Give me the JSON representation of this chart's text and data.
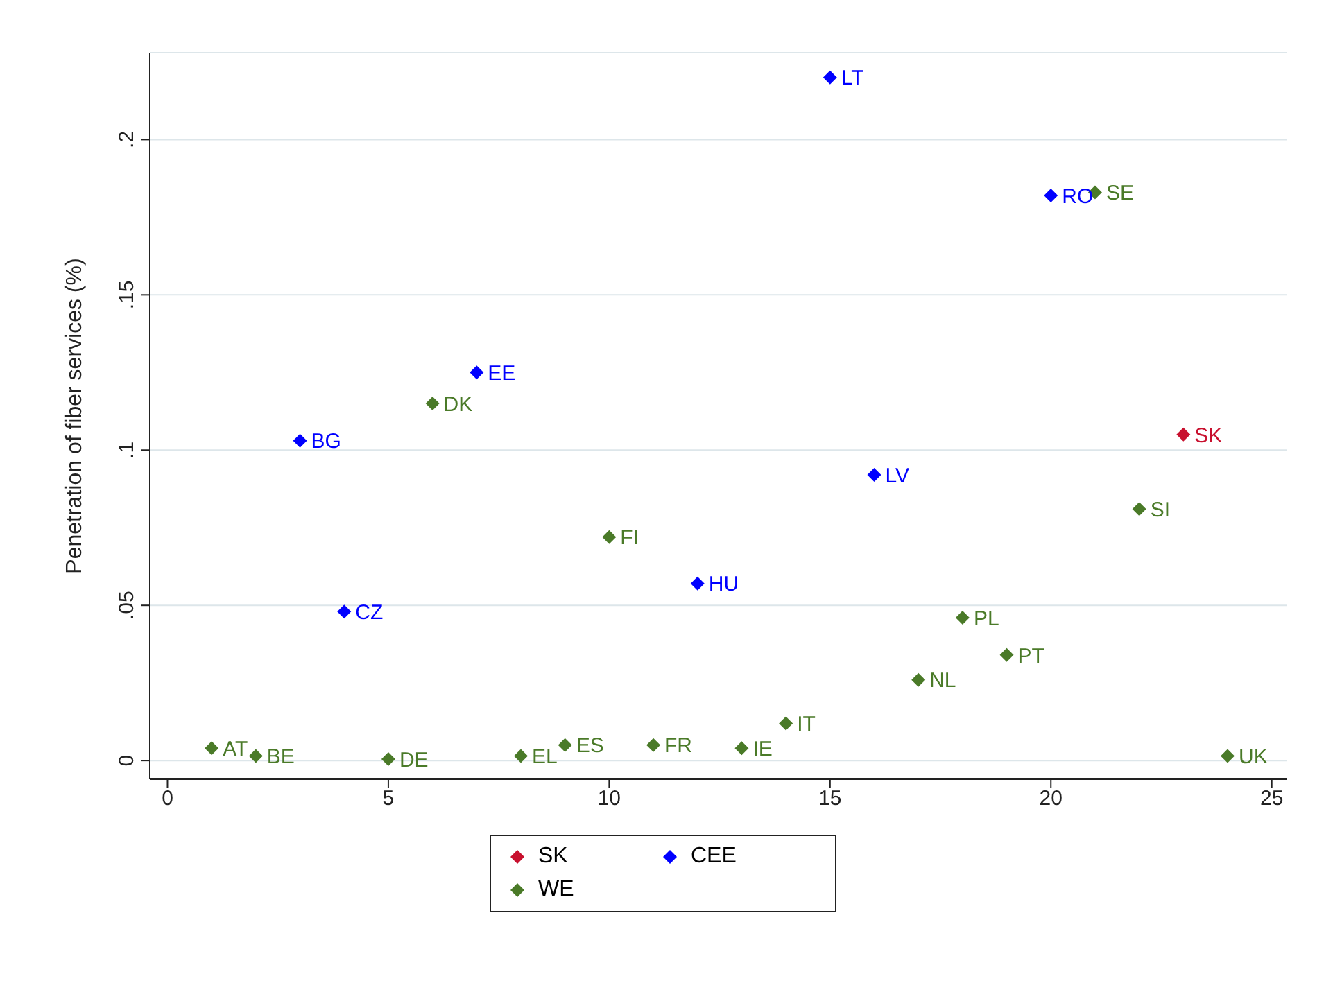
{
  "chart_data": {
    "type": "scatter",
    "ylabel": "Penetration of fiber services (%)",
    "xlim": [
      -0.4,
      25.35
    ],
    "xticks": [
      0,
      5,
      10,
      15,
      20,
      25
    ],
    "ylim": [
      -0.006,
      0.228
    ],
    "yticks": [
      0,
      {
        "value": 0.05,
        "label": ".05"
      },
      {
        "value": 0.1,
        "label": ".1"
      },
      {
        "value": 0.15,
        "label": ".15"
      },
      {
        "value": 0.2,
        "label": ".2"
      }
    ],
    "grid": "y",
    "legend": "bottom",
    "marker": "diamond",
    "series": [
      {
        "name": "SK",
        "color": "#c8102e",
        "x": [
          23
        ],
        "values": [
          0.105
        ]
      },
      {
        "name": "CEE",
        "color": "#0000ff",
        "x": [
          15,
          20,
          7,
          3,
          16,
          12,
          4
        ],
        "values": [
          0.22,
          0.182,
          0.125,
          0.103,
          0.092,
          0.057,
          0.048
        ]
      },
      {
        "name": "WE",
        "color": "#4a7a28",
        "x": [
          1,
          2,
          5,
          8,
          9,
          11,
          13,
          14,
          17,
          19,
          18,
          22,
          24,
          6,
          10,
          21
        ],
        "values": [
          0.004,
          0.0015,
          0.0005,
          0.0015,
          0.005,
          0.005,
          0.004,
          0.012,
          0.026,
          0.034,
          0.046,
          0.081,
          0.0015,
          0.115,
          0.072,
          0.183
        ]
      }
    ],
    "annotations": [
      {
        "text": "SK",
        "x": 23,
        "y": 0.105
      },
      {
        "text": "LT",
        "x": 15,
        "y": 0.22
      },
      {
        "text": "RO",
        "x": 20,
        "y": 0.182
      },
      {
        "text": "EE",
        "x": 7,
        "y": 0.125
      },
      {
        "text": "BG",
        "x": 3,
        "y": 0.103
      },
      {
        "text": "LV",
        "x": 16,
        "y": 0.092
      },
      {
        "text": "HU",
        "x": 12,
        "y": 0.057
      },
      {
        "text": "CZ",
        "x": 4,
        "y": 0.048
      },
      {
        "text": "AT",
        "x": 1,
        "y": 0.004
      },
      {
        "text": "BE",
        "x": 2,
        "y": 0.0015
      },
      {
        "text": "DE",
        "x": 5,
        "y": 0.0005
      },
      {
        "text": "EL",
        "x": 8,
        "y": 0.0015
      },
      {
        "text": "ES",
        "x": 9,
        "y": 0.005
      },
      {
        "text": "FR",
        "x": 11,
        "y": 0.005
      },
      {
        "text": "IE",
        "x": 13,
        "y": 0.004
      },
      {
        "text": "IT",
        "x": 14,
        "y": 0.012
      },
      {
        "text": "NL",
        "x": 17,
        "y": 0.026
      },
      {
        "text": "PT",
        "x": 19,
        "y": 0.034
      },
      {
        "text": "PL",
        "x": 18,
        "y": 0.046
      },
      {
        "text": "SI",
        "x": 22,
        "y": 0.081
      },
      {
        "text": "UK",
        "x": 24,
        "y": 0.0015
      },
      {
        "text": "DK",
        "x": 6,
        "y": 0.115
      },
      {
        "text": "FI",
        "x": 10,
        "y": 0.072
      },
      {
        "text": "SE",
        "x": 21,
        "y": 0.183
      }
    ]
  }
}
